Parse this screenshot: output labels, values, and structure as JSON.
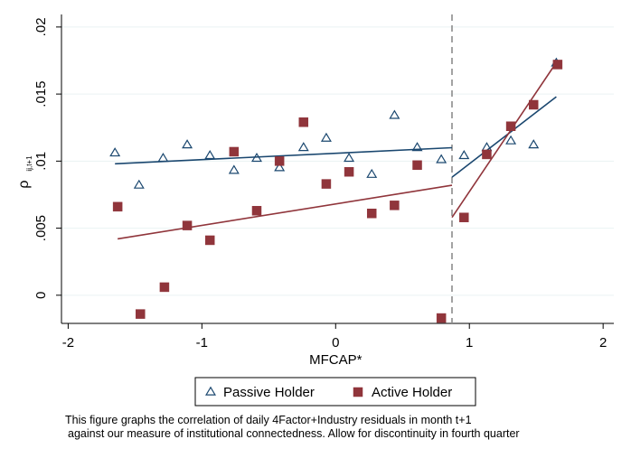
{
  "chart_data": {
    "type": "scatter",
    "xlabel": "MFCAP*",
    "ylabel": "ρ",
    "ylabel_subscript": "ij,t+1",
    "xlim": [
      -2.05,
      2.08
    ],
    "ylim": [
      -0.0021,
      0.0208
    ],
    "xticks": [
      -2,
      -1,
      0,
      1,
      2
    ],
    "xtick_labels": [
      "-2",
      "-1",
      "0",
      "1",
      "2"
    ],
    "yticks": [
      0,
      0.005,
      0.01,
      0.015,
      0.02
    ],
    "ytick_labels": [
      "0",
      ".005",
      ".01",
      ".015",
      ".02"
    ],
    "grid": "horizontal",
    "legend": "bottom",
    "discontinuity_x": 0.87,
    "series": [
      {
        "name": "Passive Holder",
        "marker": "triangle-hollow",
        "color": "#1a476f",
        "x": [
          -1.65,
          -1.47,
          -1.29,
          -1.11,
          -0.94,
          -0.76,
          -0.59,
          -0.42,
          -0.24,
          -0.07,
          0.1,
          0.27,
          0.44,
          0.61,
          0.79,
          0.96,
          1.13,
          1.31,
          1.48,
          1.65
        ],
        "y": [
          0.0106,
          0.0082,
          0.0102,
          0.0112,
          0.0104,
          0.0093,
          0.0102,
          0.0095,
          0.011,
          0.0117,
          0.0102,
          0.009,
          0.0134,
          0.011,
          0.0101,
          0.0104,
          0.011,
          0.0115,
          0.0112,
          0.0173
        ]
      },
      {
        "name": "Active Holder",
        "marker": "square-filled",
        "color": "#90353b",
        "x": [
          -1.63,
          -1.46,
          -1.28,
          -1.11,
          -0.94,
          -0.76,
          -0.59,
          -0.42,
          -0.24,
          -0.07,
          0.1,
          0.27,
          0.44,
          0.61,
          0.79,
          0.96,
          1.13,
          1.31,
          1.48,
          1.66
        ],
        "y": [
          0.0066,
          -0.0014,
          0.0006,
          0.0052,
          0.0041,
          0.0107,
          0.0063,
          0.01,
          0.0129,
          0.0083,
          0.0092,
          0.0061,
          0.0067,
          0.0097,
          -0.0017,
          0.0058,
          0.0105,
          0.0126,
          0.0142,
          0.0172
        ]
      }
    ],
    "fit_lines": [
      {
        "series": "Passive Holder",
        "color": "#1a476f",
        "x": [
          -1.65,
          0.87
        ],
        "y": [
          0.0098,
          0.011
        ]
      },
      {
        "series": "Passive Holder",
        "color": "#1a476f",
        "x": [
          0.87,
          1.65
        ],
        "y": [
          0.0088,
          0.0148
        ]
      },
      {
        "series": "Active Holder",
        "color": "#90353b",
        "x": [
          -1.63,
          0.87
        ],
        "y": [
          0.0042,
          0.0082
        ]
      },
      {
        "series": "Active Holder",
        "color": "#90353b",
        "x": [
          0.87,
          1.66
        ],
        "y": [
          0.0058,
          0.0175
        ]
      }
    ]
  },
  "caption": {
    "line1": "This figure graphs the correlation of daily 4Factor+Industry residuals in month t+1",
    "line2": "against our measure of institutional connectedness. Allow for discontinuity in fourth quarter"
  },
  "colors": {
    "passive": "#1a476f",
    "active": "#90353b",
    "grid": "#eaf2f3",
    "discontinuity": "#8c8c8c"
  }
}
